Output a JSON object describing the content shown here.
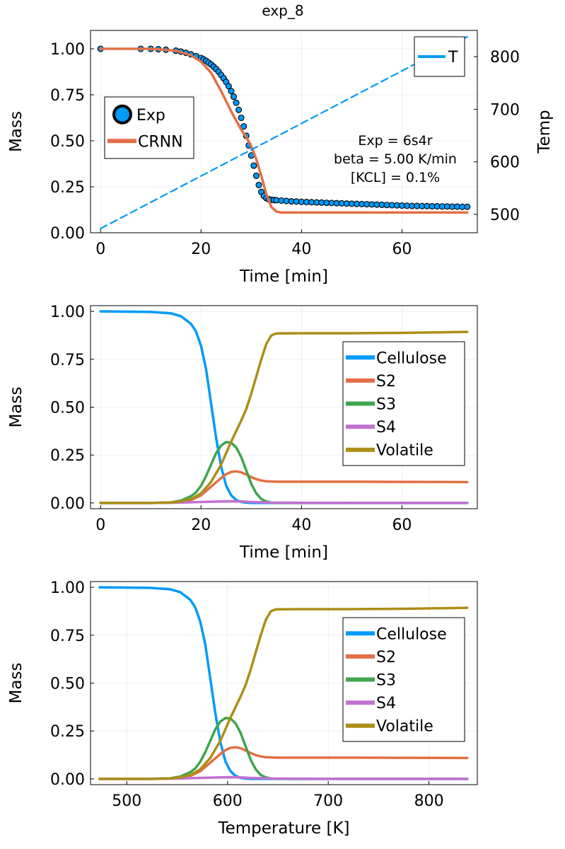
{
  "title": "exp_8",
  "colors": {
    "blue": "#009AF9",
    "orange": "#E26F46",
    "green": "#3EA44E",
    "purple": "#C271D2",
    "olive": "#AC8E18"
  },
  "chart_data": [
    {
      "type": "scatter",
      "title": "exp_8",
      "xlabel": "Time [min]",
      "ylabel": "Mass",
      "y2label": "Temp",
      "xlim": [
        -2,
        75
      ],
      "ylim": [
        0,
        1.1
      ],
      "y2lim": [
        465,
        850
      ],
      "xticks": [
        0,
        20,
        40,
        60
      ],
      "yticks": [
        "0.00",
        "0.25",
        "0.50",
        "0.75",
        "1.00"
      ],
      "y2ticks": [
        500,
        600,
        700,
        800
      ],
      "grid": true,
      "legend_position": "left-middle",
      "legend2_position": "top-right",
      "annotation": [
        "Exp = 6s4r",
        "beta = 5.00 K/min",
        "[KCL] = 0.1%"
      ],
      "series": [
        {
          "name": "Exp",
          "style": "markers",
          "x": [
            0,
            8,
            10,
            11.5,
            13,
            15,
            16,
            17,
            18,
            19,
            20,
            20.5,
            21,
            21.5,
            22,
            22.5,
            23,
            23.5,
            24,
            24.5,
            25,
            25.5,
            26,
            26.5,
            27,
            27.5,
            28,
            28.5,
            29,
            29.5,
            30,
            30.5,
            31,
            31.5,
            32,
            32.5,
            33,
            33.5,
            34,
            34.5,
            35,
            36,
            37,
            38,
            39,
            40,
            41,
            42,
            43,
            44,
            45,
            46,
            47,
            48,
            49,
            50,
            51,
            52,
            53,
            54,
            55,
            56,
            57,
            58,
            59,
            60,
            61,
            62,
            63,
            64,
            65,
            66,
            67,
            68,
            69,
            70,
            71,
            72,
            73
          ],
          "y": [
            1.0,
            1.0,
            1.0,
            0.998,
            0.995,
            0.99,
            0.985,
            0.978,
            0.97,
            0.96,
            0.95,
            0.943,
            0.935,
            0.925,
            0.915,
            0.903,
            0.89,
            0.875,
            0.858,
            0.84,
            0.82,
            0.797,
            0.77,
            0.74,
            0.707,
            0.668,
            0.625,
            0.578,
            0.527,
            0.475,
            0.42,
            0.365,
            0.31,
            0.26,
            0.222,
            0.2,
            0.188,
            0.182,
            0.179,
            0.178,
            0.177,
            0.175,
            0.173,
            0.171,
            0.17,
            0.168,
            0.167,
            0.166,
            0.165,
            0.164,
            0.163,
            0.162,
            0.161,
            0.16,
            0.159,
            0.158,
            0.157,
            0.156,
            0.155,
            0.154,
            0.153,
            0.152,
            0.151,
            0.15,
            0.149,
            0.148,
            0.147,
            0.146,
            0.146,
            0.145,
            0.145,
            0.144,
            0.144,
            0.143,
            0.143,
            0.142,
            0.142,
            0.141,
            0.141
          ]
        },
        {
          "name": "CRNN",
          "style": "line",
          "x": [
            0,
            10,
            15,
            18,
            20,
            22,
            24,
            26,
            28,
            29,
            30,
            31,
            32,
            33,
            34,
            35,
            36,
            40,
            50,
            60,
            73
          ],
          "y": [
            1.0,
            1.0,
            0.99,
            0.965,
            0.93,
            0.87,
            0.77,
            0.66,
            0.56,
            0.52,
            0.47,
            0.4,
            0.31,
            0.21,
            0.14,
            0.115,
            0.11,
            0.11,
            0.11,
            0.11,
            0.11
          ]
        },
        {
          "name": "T",
          "style": "dashed",
          "axis": "right",
          "x": [
            0,
            73
          ],
          "y": [
            473,
            838
          ]
        }
      ]
    },
    {
      "type": "line",
      "xlabel": "Time [min]",
      "ylabel": "Mass",
      "xlim": [
        -2,
        75
      ],
      "ylim": [
        -0.03,
        1.03
      ],
      "xticks": [
        0,
        20,
        40,
        60
      ],
      "yticks": [
        "0.00",
        "0.25",
        "0.50",
        "0.75",
        "1.00"
      ],
      "grid": true,
      "legend_position": "right",
      "series": [
        {
          "name": "Cellulose",
          "x": [
            0,
            10,
            14,
            16,
            18,
            19,
            20,
            21,
            22,
            23,
            24,
            25,
            26,
            27,
            28,
            29,
            30,
            32,
            35,
            40,
            50,
            60,
            73
          ],
          "y": [
            1.0,
            0.997,
            0.99,
            0.975,
            0.935,
            0.895,
            0.82,
            0.7,
            0.52,
            0.34,
            0.19,
            0.09,
            0.04,
            0.015,
            0.005,
            0.002,
            0.0,
            0.0,
            0.0,
            0.0,
            0.0,
            0.0,
            0.0
          ]
        },
        {
          "name": "S2",
          "x": [
            0,
            10,
            14,
            16,
            18,
            20,
            22,
            24,
            25,
            26,
            27,
            28,
            29,
            30,
            31,
            32,
            33,
            34,
            35,
            40,
            50,
            60,
            73
          ],
          "y": [
            0.0,
            0.0,
            0.002,
            0.005,
            0.015,
            0.04,
            0.085,
            0.13,
            0.15,
            0.162,
            0.165,
            0.16,
            0.148,
            0.135,
            0.124,
            0.117,
            0.113,
            0.112,
            0.111,
            0.111,
            0.111,
            0.11,
            0.109
          ]
        },
        {
          "name": "S3",
          "x": [
            0,
            10,
            14,
            16,
            18,
            19,
            20,
            21,
            22,
            23,
            24,
            25,
            26,
            27,
            28,
            29,
            30,
            31,
            32,
            33,
            34,
            35,
            40,
            50,
            60,
            73
          ],
          "y": [
            0.0,
            0.0,
            0.003,
            0.012,
            0.035,
            0.055,
            0.09,
            0.14,
            0.2,
            0.26,
            0.3,
            0.318,
            0.315,
            0.29,
            0.24,
            0.17,
            0.1,
            0.05,
            0.02,
            0.008,
            0.002,
            0.0,
            0.0,
            0.0,
            0.0,
            0.0
          ]
        },
        {
          "name": "S4",
          "x": [
            0,
            10,
            16,
            20,
            24,
            26,
            28,
            30,
            34,
            40,
            50,
            60,
            73
          ],
          "y": [
            0.0,
            0.0,
            0.002,
            0.005,
            0.008,
            0.009,
            0.008,
            0.005,
            0.002,
            0.001,
            0.0,
            0.0,
            0.0
          ]
        },
        {
          "name": "Volatile",
          "x": [
            0,
            10,
            14,
            16,
            18,
            20,
            22,
            24,
            26,
            28,
            29,
            30,
            31,
            32,
            33,
            34,
            35,
            40,
            50,
            60,
            73
          ],
          "y": [
            0.0,
            0.0,
            0.002,
            0.008,
            0.02,
            0.05,
            0.11,
            0.2,
            0.32,
            0.43,
            0.49,
            0.57,
            0.66,
            0.75,
            0.83,
            0.875,
            0.885,
            0.886,
            0.886,
            0.888,
            0.893
          ]
        }
      ]
    },
    {
      "type": "line",
      "xlabel": "Temperature [K]",
      "ylabel": "Mass",
      "xlim": [
        464,
        848
      ],
      "ylim": [
        -0.03,
        1.03
      ],
      "xticks": [
        500,
        600,
        700,
        800
      ],
      "yticks": [
        "0.00",
        "0.25",
        "0.50",
        "0.75",
        "1.00"
      ],
      "grid": true,
      "legend_position": "right",
      "series": [
        {
          "name": "Cellulose",
          "x": [
            473,
            523,
            543,
            553,
            563,
            568,
            573,
            578,
            583,
            588,
            593,
            598,
            603,
            608,
            613,
            618,
            623,
            633,
            648,
            673,
            723,
            773,
            838
          ],
          "y": [
            1.0,
            0.997,
            0.99,
            0.975,
            0.935,
            0.895,
            0.82,
            0.7,
            0.52,
            0.34,
            0.19,
            0.09,
            0.04,
            0.015,
            0.005,
            0.002,
            0.0,
            0.0,
            0.0,
            0.0,
            0.0,
            0.0,
            0.0
          ]
        },
        {
          "name": "S2",
          "x": [
            473,
            523,
            543,
            553,
            563,
            573,
            583,
            593,
            598,
            603,
            608,
            613,
            618,
            623,
            628,
            633,
            638,
            643,
            648,
            673,
            723,
            773,
            838
          ],
          "y": [
            0.0,
            0.0,
            0.002,
            0.005,
            0.015,
            0.04,
            0.085,
            0.13,
            0.15,
            0.162,
            0.165,
            0.16,
            0.148,
            0.135,
            0.124,
            0.117,
            0.113,
            0.112,
            0.111,
            0.111,
            0.111,
            0.11,
            0.109
          ]
        },
        {
          "name": "S3",
          "x": [
            473,
            523,
            543,
            553,
            563,
            568,
            573,
            578,
            583,
            588,
            593,
            598,
            603,
            608,
            613,
            618,
            623,
            628,
            633,
            638,
            643,
            648,
            673,
            723,
            773,
            838
          ],
          "y": [
            0.0,
            0.0,
            0.003,
            0.012,
            0.035,
            0.055,
            0.09,
            0.14,
            0.2,
            0.26,
            0.3,
            0.318,
            0.315,
            0.29,
            0.24,
            0.17,
            0.1,
            0.05,
            0.02,
            0.008,
            0.002,
            0.0,
            0.0,
            0.0,
            0.0,
            0.0
          ]
        },
        {
          "name": "S4",
          "x": [
            473,
            523,
            553,
            573,
            593,
            603,
            613,
            623,
            643,
            673,
            723,
            773,
            838
          ],
          "y": [
            0.0,
            0.0,
            0.002,
            0.005,
            0.008,
            0.009,
            0.008,
            0.005,
            0.002,
            0.001,
            0.0,
            0.0,
            0.0
          ]
        },
        {
          "name": "Volatile",
          "x": [
            473,
            523,
            543,
            553,
            563,
            573,
            583,
            593,
            603,
            613,
            618,
            623,
            628,
            633,
            638,
            643,
            648,
            673,
            723,
            773,
            838
          ],
          "y": [
            0.0,
            0.0,
            0.002,
            0.008,
            0.02,
            0.05,
            0.11,
            0.2,
            0.32,
            0.43,
            0.49,
            0.57,
            0.66,
            0.75,
            0.83,
            0.875,
            0.885,
            0.886,
            0.886,
            0.888,
            0.893
          ]
        }
      ]
    }
  ]
}
